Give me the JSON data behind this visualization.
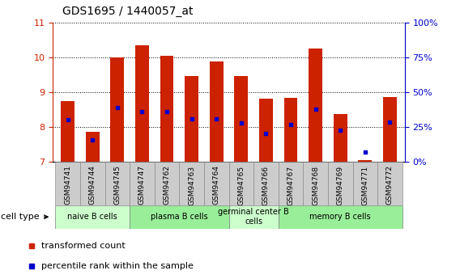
{
  "title": "GDS1695 / 1440057_at",
  "samples": [
    "GSM94741",
    "GSM94744",
    "GSM94745",
    "GSM94747",
    "GSM94762",
    "GSM94763",
    "GSM94764",
    "GSM94765",
    "GSM94766",
    "GSM94767",
    "GSM94768",
    "GSM94769",
    "GSM94771",
    "GSM94772"
  ],
  "transformed_count": [
    8.75,
    7.85,
    10.0,
    10.33,
    10.05,
    9.45,
    9.88,
    9.45,
    8.82,
    8.84,
    10.25,
    8.38,
    7.05,
    8.85
  ],
  "bar_bottom": 7.0,
  "percentile_rank_y": [
    8.2,
    7.62,
    8.56,
    8.43,
    8.43,
    8.22,
    8.22,
    8.12,
    7.82,
    8.06,
    8.5,
    7.9,
    7.27,
    8.13
  ],
  "bar_color": "#cc2200",
  "marker_color": "#0000cc",
  "ylim": [
    7,
    11
  ],
  "yticks_left": [
    7,
    8,
    9,
    10,
    11
  ],
  "right_pct": [
    0,
    25,
    50,
    75,
    100
  ],
  "bar_width": 0.55,
  "tick_label_color_left": "#cc2200",
  "tick_label_color_right": "#0000cc",
  "cell_groups": [
    {
      "label": "naive B cells",
      "start": 0,
      "end": 3,
      "color": "#ccffcc"
    },
    {
      "label": "plasma B cells",
      "start": 3,
      "end": 7,
      "color": "#99ee99"
    },
    {
      "label": "germinal center B\ncells",
      "start": 7,
      "end": 9,
      "color": "#ccffcc"
    },
    {
      "label": "memory B cells",
      "start": 9,
      "end": 14,
      "color": "#99ee99"
    }
  ],
  "sample_bg_color": "#cccccc",
  "cell_type_text": "cell type",
  "legend_items": [
    {
      "color": "#cc2200",
      "label": "transformed count"
    },
    {
      "color": "#0000cc",
      "label": "percentile rank within the sample"
    }
  ]
}
